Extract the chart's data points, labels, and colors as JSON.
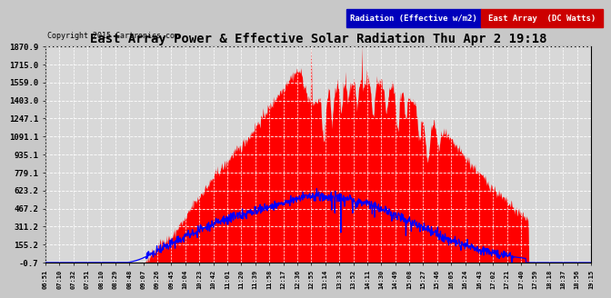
{
  "title": "East Array Power & Effective Solar Radiation Thu Apr 2 19:18",
  "copyright": "Copyright 2015 Cartronics.com",
  "legend_radiation": "Radiation (Effective w/m2)",
  "legend_array": "East Array  (DC Watts)",
  "yticks": [
    -0.7,
    155.2,
    311.2,
    467.2,
    623.2,
    779.1,
    935.1,
    1091.1,
    1247.1,
    1403.0,
    1559.0,
    1715.0,
    1870.9
  ],
  "ymin": -0.7,
  "ymax": 1870.9,
  "background_color": "#c8c8c8",
  "plot_bg_color": "#d8d8d8",
  "grid_color": "#ffffff",
  "title_color": "#000000",
  "radiation_color": "#0000ff",
  "array_color": "#ff0000",
  "radiation_legend_bg": "#0000bb",
  "array_legend_bg": "#cc0000",
  "xtick_labels": [
    "06:51",
    "07:10",
    "07:32",
    "07:51",
    "08:10",
    "08:29",
    "08:48",
    "09:07",
    "09:26",
    "09:45",
    "10:04",
    "10:23",
    "10:42",
    "11:01",
    "11:20",
    "11:39",
    "11:58",
    "12:17",
    "12:36",
    "12:55",
    "13:14",
    "13:33",
    "13:52",
    "14:11",
    "14:30",
    "14:49",
    "15:08",
    "15:27",
    "15:46",
    "16:05",
    "16:24",
    "16:43",
    "17:02",
    "17:21",
    "17:40",
    "17:59",
    "18:18",
    "18:37",
    "18:56",
    "19:15"
  ],
  "n_points": 1200,
  "seed": 42
}
